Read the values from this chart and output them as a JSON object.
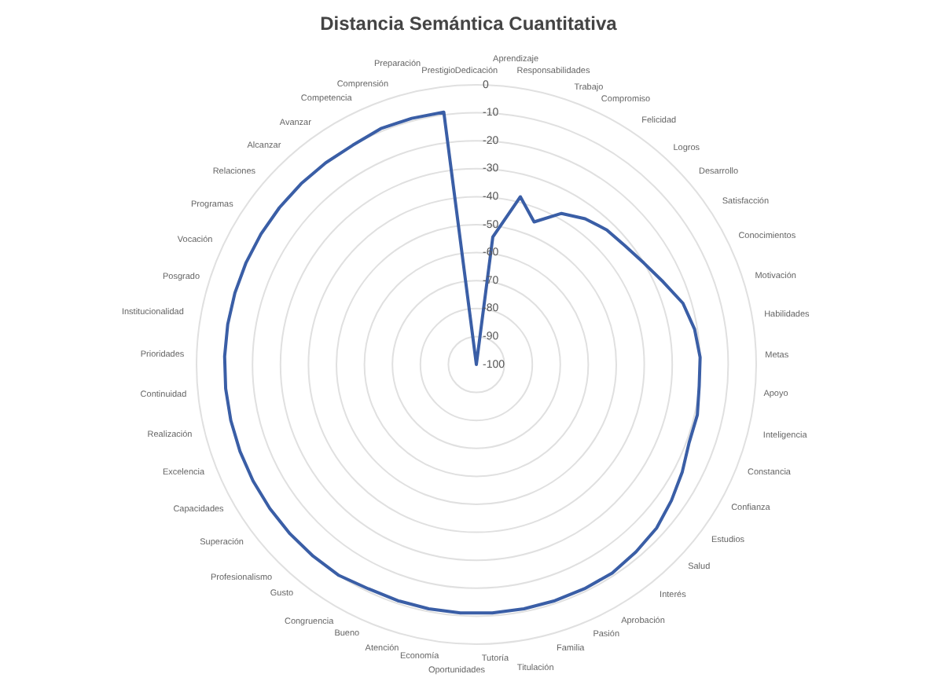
{
  "chart_data": {
    "type": "radar",
    "title": "Distancia Semántica Cuantitativa",
    "categories": [
      "Dedicación",
      "Aprendizaje",
      "Responsabilidades",
      "Trabajo",
      "Compromiso",
      "Felicidad",
      "Logros",
      "Desarrollo",
      "Satisfacción",
      "Conocimientos",
      "Motivación",
      "Habilidades",
      "Metas",
      "Apoyo",
      "Inteligencia",
      "Constancia",
      "Confianza",
      "Estudios",
      "Salud",
      "Interés",
      "Aprobación",
      "Pasión",
      "Familia",
      "Titulación",
      "Tutoría",
      "Oportunidades",
      "Economía",
      "Atención",
      "Bueno",
      "Congruencia",
      "Gusto",
      "Profesionalismo",
      "Superación",
      "Capacidades",
      "Excelencia",
      "Realización",
      "Continuidad",
      "Prioridades",
      "Institucionalidad",
      "Posgrado",
      "Vocación",
      "Programas",
      "Relaciones",
      "Alcanzar",
      "Avanzar",
      "Competencia",
      "Comprensión",
      "Preparación",
      "Prestigio"
    ],
    "series": [
      {
        "color": "#3a5ea6",
        "values": [
          -100,
          -54,
          -38,
          -45,
          -38,
          -35,
          -33,
          -32,
          -30,
          -27,
          -23,
          -21,
          -20,
          -20,
          -19,
          -19,
          -17,
          -15,
          -13,
          -12,
          -11,
          -11,
          -11,
          -11,
          -11,
          -11,
          -11,
          -11,
          -11,
          -10,
          -10,
          -10,
          -10,
          -10,
          -10,
          -10,
          -10,
          -10,
          -10,
          -10,
          -10,
          -10,
          -10,
          -10,
          -10,
          -10,
          -9,
          -9,
          -9
        ]
      }
    ],
    "ylim": [
      -100,
      0
    ],
    "yticks": [
      0,
      -10,
      -20,
      -30,
      -40,
      -50,
      -60,
      -70,
      -80,
      -90,
      -100
    ],
    "grid": true,
    "legend": false
  }
}
